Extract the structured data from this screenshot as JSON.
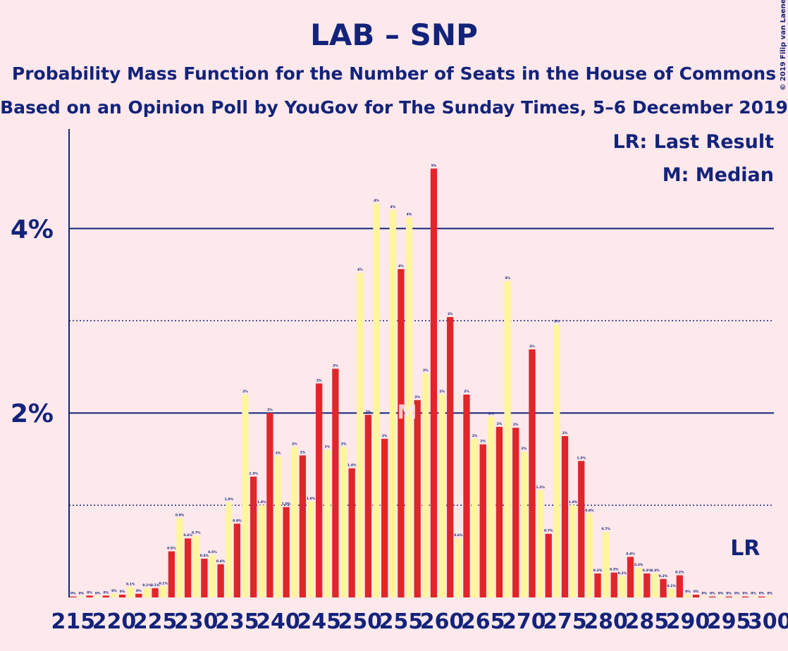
{
  "chart_data": {
    "type": "bar",
    "title": "LAB – SNP",
    "subtitle": "Probability Mass Function for the Number of Seats in the House of Commons",
    "subtitle2": "Based on an Opinion Poll by YouGov for The Sunday Times, 5–6 December 2019",
    "copyright": "© 2019 Filip van Laenen",
    "legend": [
      "LR: Last Result",
      "M: Median"
    ],
    "median": 256,
    "median_label": "M",
    "last_result": 297,
    "last_result_label": "LR",
    "x": [
      215,
      216,
      217,
      218,
      219,
      220,
      221,
      222,
      223,
      224,
      225,
      226,
      227,
      228,
      229,
      230,
      231,
      232,
      233,
      234,
      235,
      236,
      237,
      238,
      239,
      240,
      241,
      242,
      243,
      244,
      245,
      246,
      247,
      248,
      249,
      250,
      251,
      252,
      253,
      254,
      255,
      256,
      257,
      258,
      259,
      260,
      261,
      262,
      263,
      264,
      265,
      266,
      267,
      268,
      269,
      270,
      271,
      272,
      273,
      274,
      275,
      276,
      277,
      278,
      279,
      280,
      281,
      282,
      283,
      284,
      285,
      286,
      287,
      288,
      289,
      290,
      291,
      292,
      293,
      294,
      295,
      296,
      297,
      298,
      299,
      300
    ],
    "values": [
      0.01,
      0.01,
      0.02,
      0.01,
      0.02,
      0.04,
      0.03,
      0.11,
      0.04,
      0.1,
      0.1,
      0.12,
      0.5,
      0.86,
      0.64,
      0.67,
      0.42,
      0.46,
      0.36,
      1.03,
      0.8,
      2.2,
      1.31,
      1.0,
      2.0,
      1.53,
      0.98,
      1.63,
      1.54,
      1.04,
      2.32,
      1.6,
      2.48,
      1.63,
      1.4,
      3.52,
      1.98,
      4.27,
      1.72,
      4.2,
      3.56,
      4.12,
      2.14,
      2.43,
      4.65,
      2.2,
      3.04,
      0.64,
      2.2,
      1.72,
      1.66,
      1.96,
      1.85,
      3.43,
      1.84,
      1.58,
      2.69,
      1.16,
      0.69,
      2.96,
      1.75,
      1.0,
      1.48,
      0.91,
      0.26,
      0.71,
      0.27,
      0.23,
      0.44,
      0.32,
      0.26,
      0.26,
      0.2,
      0.09,
      0.24,
      0.03,
      0.03,
      0.01,
      0.01,
      0.01,
      0.01,
      0.01,
      0.01,
      0.01,
      0.01,
      0.01
    ],
    "value_labels": [
      "0%",
      "0%",
      "0%",
      "0%",
      "0%",
      "0%",
      "0%",
      "0.1%",
      "0%",
      "0.1%",
      "0.1%",
      "0.1%",
      "0.5%",
      "0.9%",
      "0.6%",
      "0.7%",
      "0.4%",
      "0.5%",
      "0.4%",
      "1.0%",
      "0.8%",
      "2%",
      "1.3%",
      "1.0%",
      "2%",
      "2%",
      "1.0%",
      "2%",
      "2%",
      "1.0%",
      "2%",
      "2%",
      "2%",
      "2%",
      "1.4%",
      "4%",
      "2%",
      "4%",
      "2%",
      "4%",
      "4%",
      "4%",
      "2%",
      "2%",
      "5%",
      "2%",
      "3%",
      "0.6%",
      "2%",
      "2%",
      "2%",
      "2%",
      "2%",
      "3%",
      "2%",
      "2%",
      "3%",
      "1.2%",
      "0.7%",
      "3%",
      "2%",
      "1.0%",
      "1.5%",
      "0.9%",
      "0.3%",
      "0.7%",
      "0.3%",
      "0.2%",
      "0.4%",
      "0.3%",
      "0.3%",
      "0.3%",
      "0.2%",
      "0.1%",
      "0.2%",
      "0%",
      "0%",
      "0%",
      "0%",
      "0%",
      "0%",
      "0%",
      "0%",
      "0%",
      "0%",
      "0%"
    ],
    "alternating_colors": [
      "#fff59d",
      "#e0262a"
    ],
    "xlim": [
      214.5,
      300.5
    ],
    "xticks": [
      215,
      220,
      225,
      230,
      235,
      240,
      245,
      250,
      255,
      260,
      265,
      270,
      275,
      280,
      285,
      290,
      295,
      300
    ],
    "ylim": [
      0,
      5.08
    ],
    "yticks": [
      {
        "value": 2,
        "label": "2%"
      },
      {
        "value": 4,
        "label": "4%"
      }
    ],
    "minor_yticks": [
      1,
      3
    ],
    "grid": true
  }
}
